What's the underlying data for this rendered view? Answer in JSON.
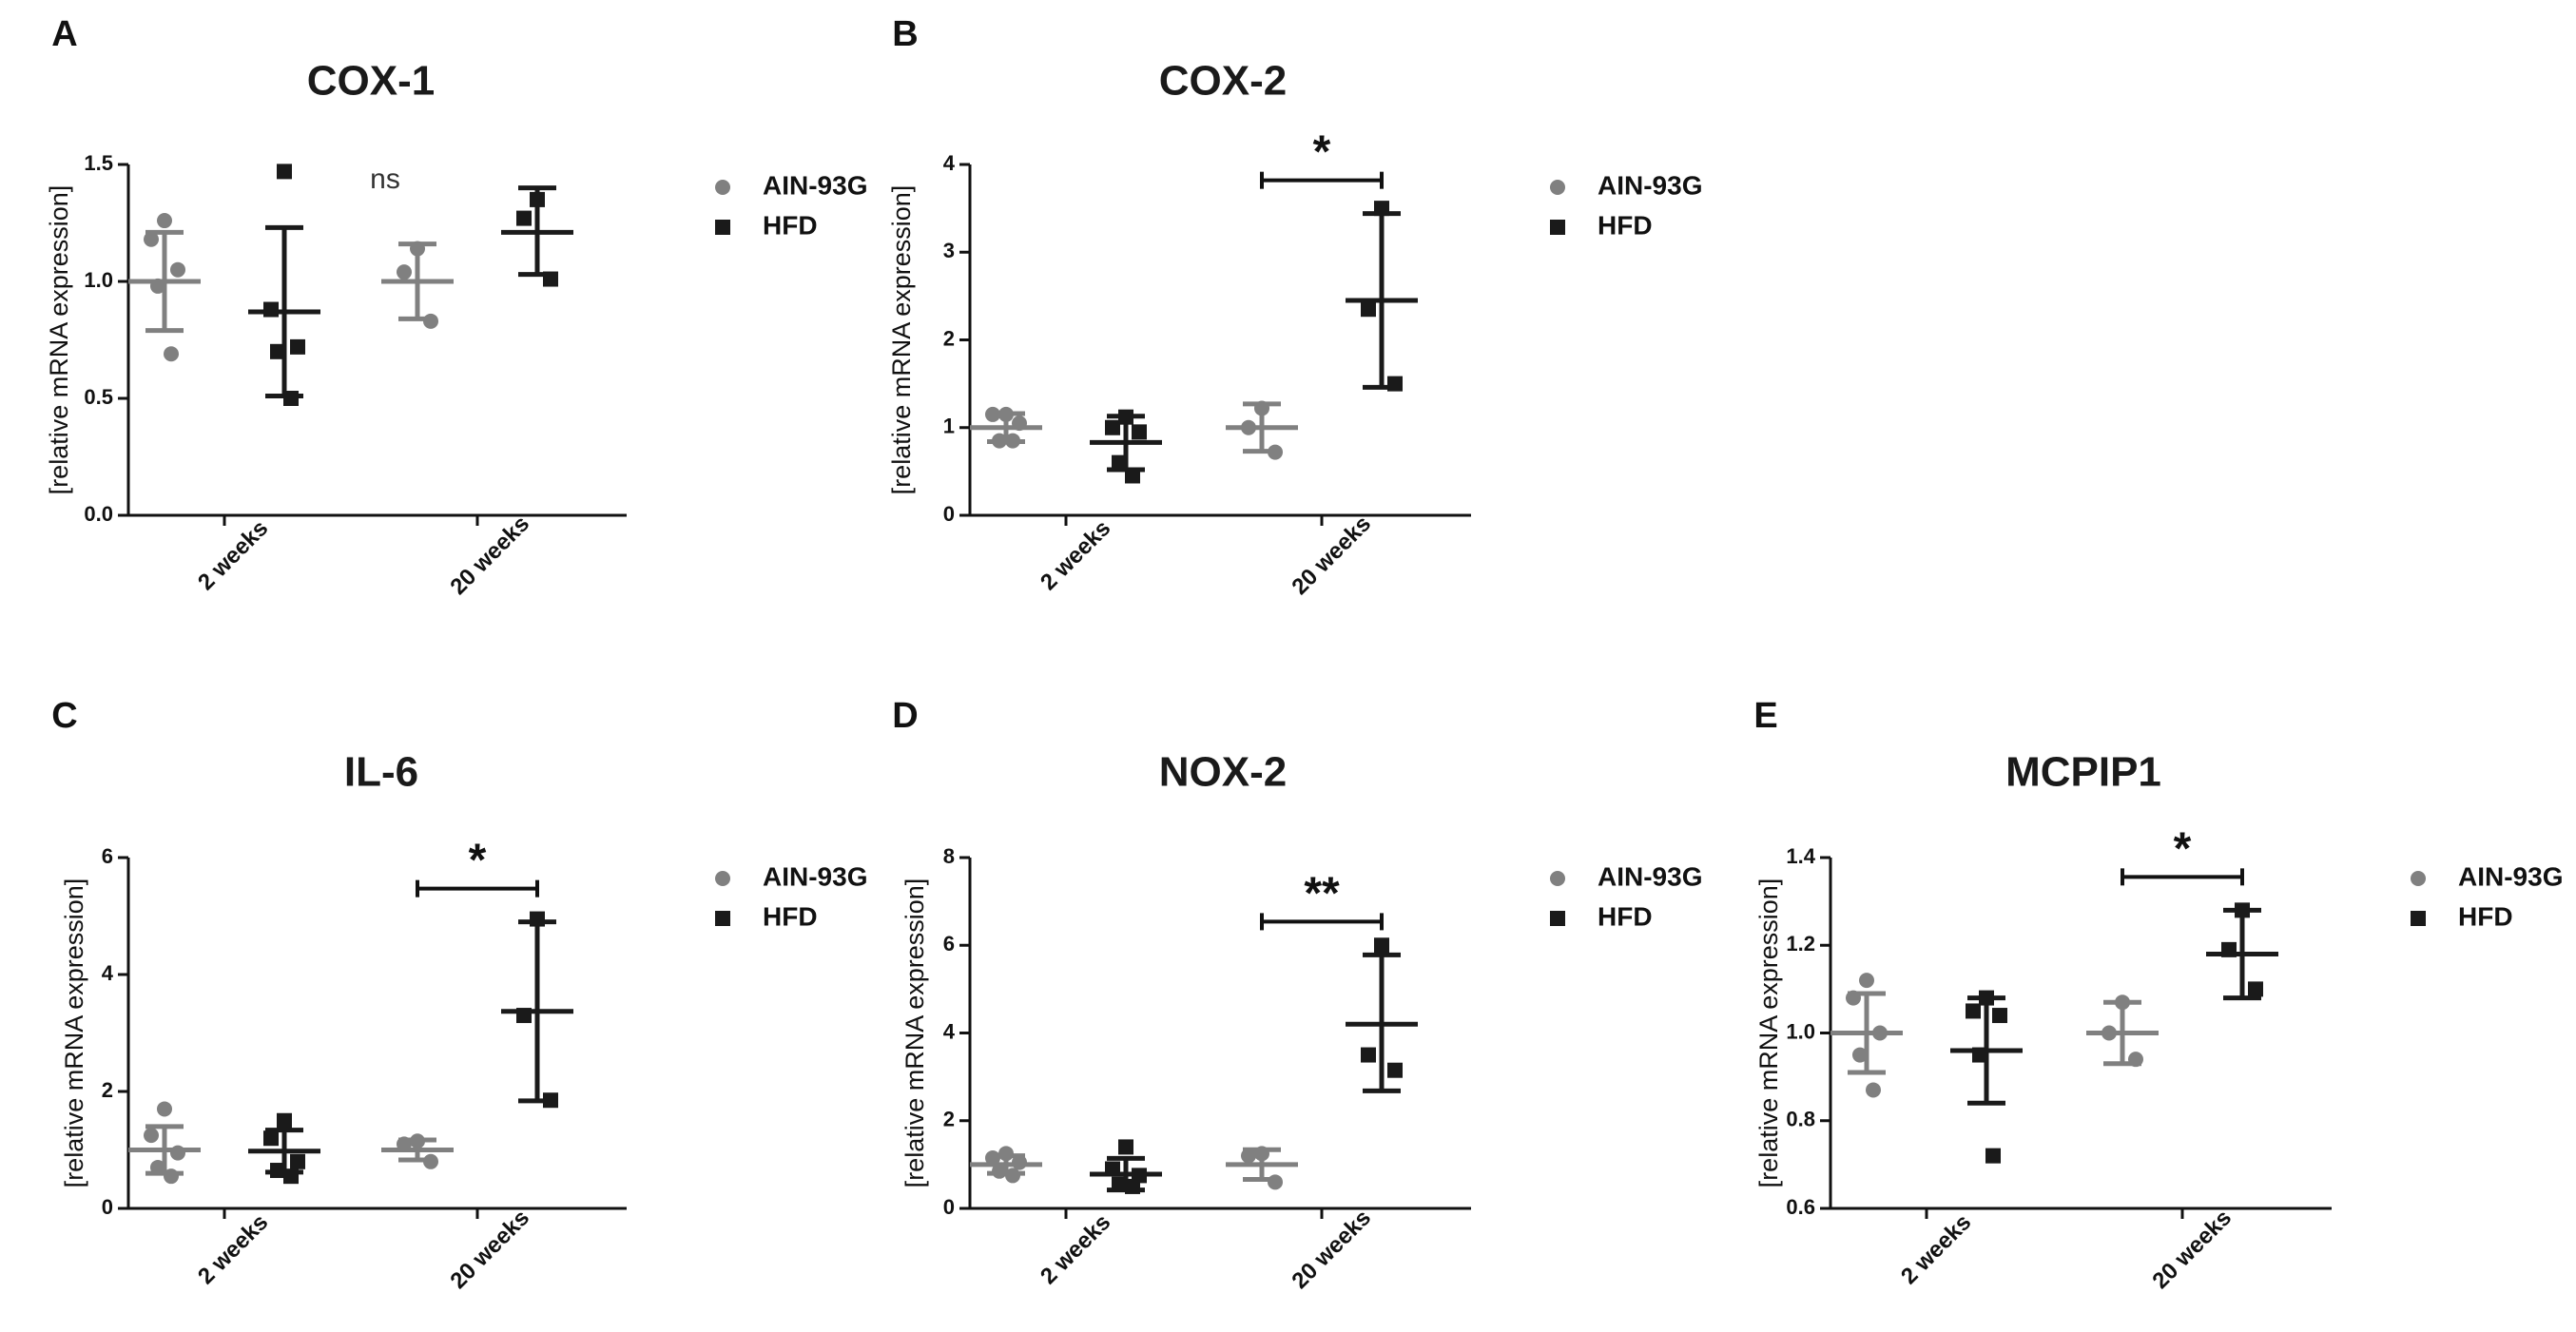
{
  "colors": {
    "AIN-93G": "#808080",
    "HFD": "#1a1a1a"
  },
  "legend": [
    {
      "label": "AIN-93G",
      "marker": "circle"
    },
    {
      "label": "HFD",
      "marker": "square"
    }
  ],
  "chart_data": [
    {
      "panel": "A",
      "type": "scatter",
      "title": "COX-1",
      "ylabel": "[relative mRNA expression]",
      "categories": [
        "2 weeks",
        "20 weeks"
      ],
      "ylim": [
        0,
        1.5
      ],
      "yticks": [
        0.0,
        0.5,
        1.0,
        1.5
      ],
      "ytick_labels": [
        "0.0",
        "0.5",
        "1.0",
        "1.5"
      ],
      "series": [
        {
          "name": "AIN-93G",
          "marker": "circle",
          "groups": [
            {
              "points": [
                1.26,
                1.18,
                1.05,
                0.98,
                0.69
              ],
              "mean": 1.0,
              "sd_low": 0.79,
              "sd_high": 1.21
            },
            {
              "points": [
                1.14,
                1.04,
                0.83
              ],
              "mean": 1.0,
              "sd_low": 0.84,
              "sd_high": 1.16
            }
          ]
        },
        {
          "name": "HFD",
          "marker": "square",
          "groups": [
            {
              "points": [
                1.47,
                0.88,
                0.72,
                0.7,
                0.5
              ],
              "mean": 0.87,
              "sd_low": 0.51,
              "sd_high": 1.23
            },
            {
              "points": [
                1.35,
                1.27,
                1.01
              ],
              "mean": 1.21,
              "sd_low": 1.03,
              "sd_high": 1.4
            }
          ]
        }
      ],
      "significance": {
        "text": "ns"
      }
    },
    {
      "panel": "B",
      "type": "scatter",
      "title": "COX-2",
      "ylabel": "[relative mRNA expression]",
      "categories": [
        "2 weeks",
        "20 weeks"
      ],
      "ylim": [
        0,
        4
      ],
      "yticks": [
        0,
        1,
        2,
        3,
        4
      ],
      "ytick_labels": [
        "0",
        "1",
        "2",
        "3",
        "4"
      ],
      "series": [
        {
          "name": "AIN-93G",
          "marker": "circle",
          "groups": [
            {
              "points": [
                1.15,
                1.15,
                1.05,
                0.85,
                0.85
              ],
              "mean": 1.0,
              "sd_low": 0.84,
              "sd_high": 1.16
            },
            {
              "points": [
                1.22,
                1.0,
                0.72
              ],
              "mean": 1.0,
              "sd_low": 0.73,
              "sd_high": 1.27
            }
          ]
        },
        {
          "name": "HFD",
          "marker": "square",
          "groups": [
            {
              "points": [
                1.12,
                1.0,
                0.95,
                0.6,
                0.45
              ],
              "mean": 0.83,
              "sd_low": 0.52,
              "sd_high": 1.13
            },
            {
              "points": [
                3.5,
                2.35,
                1.5
              ],
              "mean": 2.45,
              "sd_low": 1.46,
              "sd_high": 3.44
            }
          ]
        }
      ],
      "significance": {
        "text": "*"
      }
    },
    {
      "panel": "C",
      "type": "scatter",
      "title": "IL-6",
      "ylabel": "[relative mRNA expression]",
      "categories": [
        "2 weeks",
        "20 weeks"
      ],
      "ylim": [
        0,
        6
      ],
      "yticks": [
        0,
        2,
        4,
        6
      ],
      "ytick_labels": [
        "0",
        "2",
        "4",
        "6"
      ],
      "series": [
        {
          "name": "AIN-93G",
          "marker": "circle",
          "groups": [
            {
              "points": [
                1.7,
                1.25,
                0.95,
                0.7,
                0.55
              ],
              "mean": 1.0,
              "sd_low": 0.6,
              "sd_high": 1.4
            },
            {
              "points": [
                1.15,
                1.1,
                0.8
              ],
              "mean": 1.0,
              "sd_low": 0.83,
              "sd_high": 1.17
            }
          ]
        },
        {
          "name": "HFD",
          "marker": "square",
          "groups": [
            {
              "points": [
                1.5,
                1.2,
                0.8,
                0.65,
                0.55
              ],
              "mean": 0.98,
              "sd_low": 0.62,
              "sd_high": 1.34
            },
            {
              "points": [
                4.95,
                3.3,
                1.85
              ],
              "mean": 3.37,
              "sd_low": 1.84,
              "sd_high": 4.9
            }
          ]
        }
      ],
      "significance": {
        "text": "*"
      }
    },
    {
      "panel": "D",
      "type": "scatter",
      "title": "NOX-2",
      "ylabel": "[relative mRNA expression]",
      "categories": [
        "2 weeks",
        "20 weeks"
      ],
      "ylim": [
        0,
        8
      ],
      "yticks": [
        0,
        2,
        4,
        6,
        8
      ],
      "ytick_labels": [
        "0",
        "2",
        "4",
        "6",
        "8"
      ],
      "series": [
        {
          "name": "AIN-93G",
          "marker": "circle",
          "groups": [
            {
              "points": [
                1.25,
                1.15,
                1.05,
                0.85,
                0.75
              ],
              "mean": 1.0,
              "sd_low": 0.8,
              "sd_high": 1.2
            },
            {
              "points": [
                1.25,
                1.2,
                0.6
              ],
              "mean": 1.0,
              "sd_low": 0.66,
              "sd_high": 1.34
            }
          ]
        },
        {
          "name": "HFD",
          "marker": "square",
          "groups": [
            {
              "points": [
                1.4,
                0.9,
                0.75,
                0.55,
                0.5
              ],
              "mean": 0.78,
              "sd_low": 0.42,
              "sd_high": 1.14
            },
            {
              "points": [
                6.0,
                3.5,
                3.15
              ],
              "mean": 4.2,
              "sd_low": 2.68,
              "sd_high": 5.78
            }
          ]
        }
      ],
      "significance": {
        "text": "**"
      }
    },
    {
      "panel": "E",
      "type": "scatter",
      "title": "MCPIP1",
      "ylabel": "[relative mRNA expression]",
      "categories": [
        "2 weeks",
        "20 weeks"
      ],
      "ylim": [
        0.6,
        1.4
      ],
      "yticks": [
        0.6,
        0.8,
        1.0,
        1.2,
        1.4
      ],
      "ytick_labels": [
        "0.6",
        "0.8",
        "1.0",
        "1.2",
        "1.4"
      ],
      "series": [
        {
          "name": "AIN-93G",
          "marker": "circle",
          "groups": [
            {
              "points": [
                1.12,
                1.08,
                1.0,
                0.95,
                0.87
              ],
              "mean": 1.0,
              "sd_low": 0.91,
              "sd_high": 1.09
            },
            {
              "points": [
                1.07,
                1.0,
                0.94
              ],
              "mean": 1.0,
              "sd_low": 0.93,
              "sd_high": 1.07
            }
          ]
        },
        {
          "name": "HFD",
          "marker": "square",
          "groups": [
            {
              "points": [
                1.08,
                1.05,
                1.04,
                0.95,
                0.72
              ],
              "mean": 0.96,
              "sd_low": 0.84,
              "sd_high": 1.08
            },
            {
              "points": [
                1.28,
                1.19,
                1.1
              ],
              "mean": 1.18,
              "sd_low": 1.08,
              "sd_high": 1.28
            }
          ]
        }
      ],
      "significance": {
        "text": "*"
      }
    }
  ]
}
